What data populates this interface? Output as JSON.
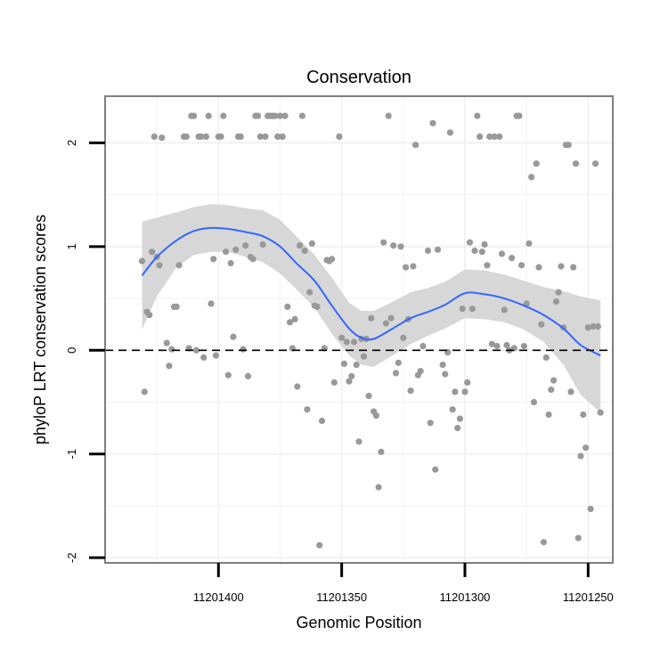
{
  "chart_data": {
    "type": "scatter",
    "title": "Conservation",
    "xlabel": "Genomic Position",
    "ylabel": "phyloP LRT conservation scores",
    "x_reversed": true,
    "xlim": [
      11201446,
      11201240
    ],
    "ylim": [
      -2.05,
      2.45
    ],
    "x_ticks": [
      11201400,
      11201350,
      11201300,
      11201250
    ],
    "x_tick_labels": [
      "11201400",
      "11201350",
      "11201300",
      "11201250"
    ],
    "y_ticks": [
      2,
      1,
      0,
      -1,
      -2
    ],
    "y_tick_labels": [
      "2",
      "1",
      "0",
      "-1",
      "-2"
    ],
    "grid": true,
    "reference_line": {
      "y": 0,
      "style": "dashed"
    },
    "colors": {
      "points": "#999999",
      "smooth": "#3366FF",
      "band": "#D3D3D3",
      "panel_border": "#7F7F7F",
      "grid": "#F2F2F2"
    },
    "points": [
      [
        11201431,
        0.86
      ],
      [
        11201430,
        -0.4
      ],
      [
        11201429,
        0.37
      ],
      [
        11201428,
        0.34
      ],
      [
        11201427,
        0.95
      ],
      [
        11201426,
        2.06
      ],
      [
        11201425,
        0.9
      ],
      [
        11201424,
        0.82
      ],
      [
        11201423,
        2.05
      ],
      [
        11201421,
        0.07
      ],
      [
        11201420,
        -0.15
      ],
      [
        11201419,
        0.01
      ],
      [
        11201418,
        0.42
      ],
      [
        11201417,
        0.42
      ],
      [
        11201416,
        0.82
      ],
      [
        11201414,
        2.06
      ],
      [
        11201413,
        2.06
      ],
      [
        11201412,
        0.02
      ],
      [
        11201411,
        2.26
      ],
      [
        11201410,
        2.26
      ],
      [
        11201409,
        0.0
      ],
      [
        11201408,
        2.06
      ],
      [
        11201407,
        2.06
      ],
      [
        11201406,
        -0.07
      ],
      [
        11201405,
        2.06
      ],
      [
        11201404,
        2.26
      ],
      [
        11201403,
        0.45
      ],
      [
        11201402,
        0.88
      ],
      [
        11201401,
        -0.05
      ],
      [
        11201400,
        2.06
      ],
      [
        11201399,
        2.06
      ],
      [
        11201398,
        2.26
      ],
      [
        11201397,
        0.95
      ],
      [
        11201396,
        -0.24
      ],
      [
        11201395,
        0.84
      ],
      [
        11201394,
        0.13
      ],
      [
        11201393,
        0.97
      ],
      [
        11201392,
        2.06
      ],
      [
        11201391,
        2.06
      ],
      [
        11201390,
        0.01
      ],
      [
        11201389,
        1.01
      ],
      [
        11201388,
        -0.25
      ],
      [
        11201387,
        0.9
      ],
      [
        11201386,
        0.88
      ],
      [
        11201385,
        2.26
      ],
      [
        11201384,
        2.26
      ],
      [
        11201383,
        2.06
      ],
      [
        11201382,
        1.02
      ],
      [
        11201381,
        2.06
      ],
      [
        11201380,
        2.26
      ],
      [
        11201379,
        2.26
      ],
      [
        11201378,
        2.26
      ],
      [
        11201377,
        2.26
      ],
      [
        11201376,
        2.06
      ],
      [
        11201375,
        2.26
      ],
      [
        11201374,
        2.06
      ],
      [
        11201373,
        2.26
      ],
      [
        11201372,
        0.42
      ],
      [
        11201371,
        0.27
      ],
      [
        11201370,
        0.02
      ],
      [
        11201369,
        0.3
      ],
      [
        11201368,
        -0.35
      ],
      [
        11201367,
        1.01
      ],
      [
        11201366,
        2.26
      ],
      [
        11201365,
        0.96
      ],
      [
        11201364,
        -0.57
      ],
      [
        11201363,
        0.56
      ],
      [
        11201362,
        1.03
      ],
      [
        11201361,
        0.43
      ],
      [
        11201360,
        0.42
      ],
      [
        11201359,
        -1.88
      ],
      [
        11201358,
        -0.68
      ],
      [
        11201357,
        0.02
      ],
      [
        11201356,
        0.87
      ],
      [
        11201355,
        0.86
      ],
      [
        11201354,
        0.88
      ],
      [
        11201353,
        -0.31
      ],
      [
        11201351,
        2.06
      ],
      [
        11201350,
        0.12
      ],
      [
        11201349,
        -0.13
      ],
      [
        11201348,
        0.08
      ],
      [
        11201347,
        -0.3
      ],
      [
        11201346,
        -0.25
      ],
      [
        11201345,
        0.08
      ],
      [
        11201344,
        -0.14
      ],
      [
        11201343,
        -0.88
      ],
      [
        11201342,
        0.11
      ],
      [
        11201341,
        -0.06
      ],
      [
        11201340,
        0.11
      ],
      [
        11201339,
        -0.44
      ],
      [
        11201338,
        0.31
      ],
      [
        11201337,
        -0.59
      ],
      [
        11201336,
        -0.63
      ],
      [
        11201335,
        -1.32
      ],
      [
        11201334,
        -0.98
      ],
      [
        11201333,
        1.04
      ],
      [
        11201332,
        0.26
      ],
      [
        11201331,
        2.26
      ],
      [
        11201330,
        0.31
      ],
      [
        11201329,
        1.01
      ],
      [
        11201328,
        -0.22
      ],
      [
        11201327,
        -0.12
      ],
      [
        11201326,
        1.0
      ],
      [
        11201325,
        0.12
      ],
      [
        11201324,
        0.8
      ],
      [
        11201323,
        0.3
      ],
      [
        11201322,
        -0.39
      ],
      [
        11201321,
        0.81
      ],
      [
        11201320,
        1.98
      ],
      [
        11201319,
        -0.24
      ],
      [
        11201318,
        -0.2
      ],
      [
        11201317,
        0.04
      ],
      [
        11201315,
        0.96
      ],
      [
        11201314,
        -0.7
      ],
      [
        11201313,
        2.19
      ],
      [
        11201312,
        -1.15
      ],
      [
        11201311,
        0.97
      ],
      [
        11201309,
        -0.14
      ],
      [
        11201308,
        -0.23
      ],
      [
        11201307,
        -0.02
      ],
      [
        11201306,
        2.1
      ],
      [
        11201305,
        -0.57
      ],
      [
        11201304,
        -0.4
      ],
      [
        11201303,
        -0.75
      ],
      [
        11201302,
        -0.66
      ],
      [
        11201301,
        0.4
      ],
      [
        11201300,
        -0.4
      ],
      [
        11201299,
        -0.31
      ],
      [
        11201298,
        1.04
      ],
      [
        11201297,
        0.4
      ],
      [
        11201296,
        0.96
      ],
      [
        11201295,
        2.26
      ],
      [
        11201294,
        2.06
      ],
      [
        11201293,
        0.95
      ],
      [
        11201292,
        1.02
      ],
      [
        11201291,
        0.82
      ],
      [
        11201290,
        2.06
      ],
      [
        11201289,
        0.06
      ],
      [
        11201288,
        2.06
      ],
      [
        11201287,
        0.04
      ],
      [
        11201286,
        2.06
      ],
      [
        11201285,
        0.93
      ],
      [
        11201284,
        0.39
      ],
      [
        11201283,
        0.05
      ],
      [
        11201282,
        0.0
      ],
      [
        11201281,
        0.89
      ],
      [
        11201280,
        0.02
      ],
      [
        11201279,
        2.26
      ],
      [
        11201278,
        2.26
      ],
      [
        11201277,
        0.82
      ],
      [
        11201276,
        0.04
      ],
      [
        11201275,
        0.45
      ],
      [
        11201274,
        1.03
      ],
      [
        11201273,
        1.67
      ],
      [
        11201272,
        -0.5
      ],
      [
        11201271,
        1.8
      ],
      [
        11201270,
        0.8
      ],
      [
        11201269,
        0.25
      ],
      [
        11201268,
        -1.85
      ],
      [
        11201267,
        -0.07
      ],
      [
        11201266,
        -0.62
      ],
      [
        11201265,
        -0.38
      ],
      [
        11201264,
        -0.29
      ],
      [
        11201263,
        0.47
      ],
      [
        11201262,
        0.56
      ],
      [
        11201261,
        0.81
      ],
      [
        11201260,
        0.22
      ],
      [
        11201259,
        1.98
      ],
      [
        11201258,
        1.98
      ],
      [
        11201257,
        -0.4
      ],
      [
        11201256,
        0.8
      ],
      [
        11201255,
        1.8
      ],
      [
        11201254,
        -1.81
      ],
      [
        11201253,
        -1.02
      ],
      [
        11201252,
        -0.62
      ],
      [
        11201251,
        -0.94
      ],
      [
        11201250,
        0.22
      ],
      [
        11201249,
        -1.53
      ],
      [
        11201248,
        0.23
      ],
      [
        11201247,
        1.8
      ],
      [
        11201246,
        0.23
      ],
      [
        11201245,
        -0.6
      ]
    ],
    "smooth": [
      {
        "x": 11201431,
        "y": 0.72,
        "lo": 0.2,
        "hi": 1.24
      },
      {
        "x": 11201425,
        "y": 0.9,
        "lo": 0.52,
        "hi": 1.28
      },
      {
        "x": 11201417,
        "y": 1.06,
        "lo": 0.8,
        "hi": 1.33
      },
      {
        "x": 11201410,
        "y": 1.15,
        "lo": 0.92,
        "hi": 1.38
      },
      {
        "x": 11201403,
        "y": 1.18,
        "lo": 0.95,
        "hi": 1.41
      },
      {
        "x": 11201396,
        "y": 1.17,
        "lo": 0.95,
        "hi": 1.4
      },
      {
        "x": 11201389,
        "y": 1.14,
        "lo": 0.9,
        "hi": 1.37
      },
      {
        "x": 11201382,
        "y": 1.1,
        "lo": 0.85,
        "hi": 1.35
      },
      {
        "x": 11201375,
        "y": 1.0,
        "lo": 0.74,
        "hi": 1.26
      },
      {
        "x": 11201368,
        "y": 0.83,
        "lo": 0.58,
        "hi": 1.09
      },
      {
        "x": 11201361,
        "y": 0.67,
        "lo": 0.41,
        "hi": 0.92
      },
      {
        "x": 11201354,
        "y": 0.43,
        "lo": 0.16,
        "hi": 0.7
      },
      {
        "x": 11201347,
        "y": 0.21,
        "lo": -0.05,
        "hi": 0.46
      },
      {
        "x": 11201342,
        "y": 0.12,
        "lo": -0.14,
        "hi": 0.38
      },
      {
        "x": 11201337,
        "y": 0.11,
        "lo": -0.16,
        "hi": 0.38
      },
      {
        "x": 11201330,
        "y": 0.2,
        "lo": -0.06,
        "hi": 0.46
      },
      {
        "x": 11201322,
        "y": 0.31,
        "lo": 0.06,
        "hi": 0.56
      },
      {
        "x": 11201315,
        "y": 0.37,
        "lo": 0.14,
        "hi": 0.6
      },
      {
        "x": 11201308,
        "y": 0.44,
        "lo": 0.21,
        "hi": 0.66
      },
      {
        "x": 11201300,
        "y": 0.55,
        "lo": 0.31,
        "hi": 0.78
      },
      {
        "x": 11201292,
        "y": 0.54,
        "lo": 0.3,
        "hi": 0.77
      },
      {
        "x": 11201284,
        "y": 0.5,
        "lo": 0.27,
        "hi": 0.73
      },
      {
        "x": 11201276,
        "y": 0.43,
        "lo": 0.2,
        "hi": 0.67
      },
      {
        "x": 11201268,
        "y": 0.34,
        "lo": 0.08,
        "hi": 0.61
      },
      {
        "x": 11201260,
        "y": 0.21,
        "lo": -0.14,
        "hi": 0.57
      },
      {
        "x": 11201253,
        "y": 0.05,
        "lo": -0.43,
        "hi": 0.52
      },
      {
        "x": 11201245,
        "y": -0.05,
        "lo": -0.6,
        "hi": 0.48
      }
    ]
  }
}
